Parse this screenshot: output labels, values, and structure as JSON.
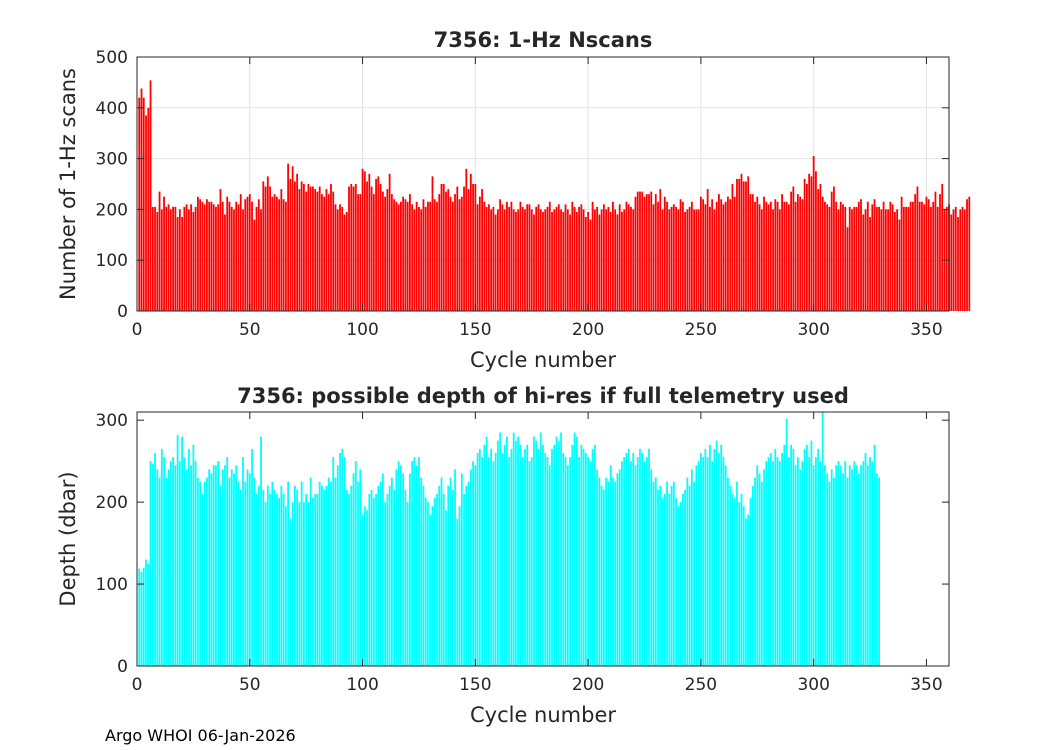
{
  "footer": "Argo WHOI 06-Jan-2026",
  "chart_data": [
    {
      "type": "bar",
      "title": "7356: 1-Hz Nscans",
      "xlabel": "Cycle number",
      "ylabel": "Number of 1-Hz scans",
      "xlim": [
        0,
        360
      ],
      "ylim": [
        0,
        500
      ],
      "xticks": [
        0,
        50,
        100,
        150,
        200,
        250,
        300,
        350
      ],
      "yticks": [
        0,
        100,
        200,
        300,
        400,
        500
      ],
      "grid": true,
      "bar_color": "#ff0000",
      "x_start": 1,
      "values": [
        420,
        438,
        420,
        385,
        400,
        454,
        205,
        205,
        195,
        235,
        200,
        225,
        205,
        210,
        200,
        205,
        205,
        185,
        200,
        185,
        205,
        210,
        200,
        210,
        195,
        205,
        225,
        220,
        215,
        210,
        220,
        215,
        215,
        210,
        205,
        210,
        240,
        215,
        190,
        225,
        215,
        205,
        200,
        215,
        210,
        230,
        200,
        220,
        225,
        230,
        215,
        180,
        205,
        220,
        200,
        255,
        245,
        265,
        245,
        225,
        230,
        225,
        220,
        240,
        220,
        215,
        290,
        260,
        285,
        255,
        270,
        240,
        255,
        250,
        235,
        250,
        245,
        245,
        240,
        235,
        245,
        230,
        225,
        240,
        230,
        250,
        235,
        210,
        200,
        210,
        205,
        190,
        195,
        245,
        250,
        245,
        250,
        230,
        230,
        280,
        275,
        255,
        270,
        245,
        230,
        260,
        265,
        250,
        235,
        225,
        240,
        270,
        230,
        220,
        215,
        210,
        215,
        225,
        220,
        215,
        230,
        210,
        200,
        215,
        205,
        200,
        220,
        205,
        215,
        215,
        265,
        220,
        215,
        230,
        250,
        250,
        235,
        240,
        225,
        215,
        230,
        245,
        220,
        225,
        245,
        280,
        240,
        270,
        250,
        250,
        210,
        225,
        240,
        215,
        205,
        210,
        200,
        205,
        190,
        200,
        220,
        210,
        200,
        215,
        205,
        215,
        200,
        195,
        200,
        215,
        205,
        200,
        210,
        210,
        200,
        190,
        205,
        210,
        200,
        195,
        200,
        205,
        215,
        195,
        200,
        205,
        210,
        200,
        195,
        210,
        200,
        190,
        215,
        205,
        195,
        205,
        210,
        200,
        185,
        195,
        180,
        215,
        200,
        205,
        190,
        200,
        210,
        200,
        205,
        195,
        215,
        200,
        190,
        210,
        195,
        200,
        215,
        210,
        205,
        200,
        225,
        235,
        235,
        235,
        225,
        230,
        230,
        235,
        210,
        230,
        215,
        240,
        200,
        225,
        215,
        200,
        205,
        210,
        205,
        200,
        220,
        215,
        195,
        200,
        205,
        215,
        200,
        200,
        200,
        225,
        220,
        210,
        240,
        205,
        220,
        200,
        215,
        230,
        220,
        210,
        215,
        225,
        220,
        250,
        225,
        260,
        260,
        270,
        255,
        255,
        265,
        230,
        230,
        215,
        225,
        210,
        200,
        225,
        215,
        210,
        215,
        200,
        220,
        215,
        200,
        230,
        215,
        215,
        210,
        235,
        245,
        215,
        230,
        225,
        220,
        260,
        250,
        270,
        265,
        305,
        275,
        240,
        250,
        225,
        215,
        210,
        205,
        235,
        245,
        215,
        200,
        215,
        210,
        205,
        165,
        205,
        200,
        205,
        205,
        215,
        220,
        190,
        200,
        215,
        185,
        210,
        220,
        205,
        205,
        200,
        215,
        200,
        200,
        215,
        210,
        195,
        200,
        180,
        225,
        205,
        205,
        205,
        215,
        215,
        230,
        245,
        215,
        215,
        210,
        225,
        220,
        205,
        215,
        235,
        205,
        230,
        250,
        200,
        205,
        210,
        190,
        200,
        205,
        185,
        200,
        205,
        200,
        220,
        225
      ]
    },
    {
      "type": "bar",
      "title": "7356: possible depth of hi-res if full telemetry used",
      "xlabel": "Cycle number",
      "ylabel": "Depth (dbar)",
      "xlim": [
        0,
        360
      ],
      "ylim": [
        0,
        310
      ],
      "xticks": [
        0,
        50,
        100,
        150,
        200,
        250,
        300,
        350
      ],
      "yticks": [
        0,
        100,
        200,
        300
      ],
      "grid": false,
      "bar_color": "#00ffff",
      "x_start": 1,
      "values": [
        119,
        115,
        120,
        130,
        125,
        250,
        247,
        260,
        240,
        230,
        265,
        255,
        230,
        240,
        250,
        255,
        245,
        282,
        250,
        280,
        255,
        240,
        265,
        245,
        270,
        250,
        230,
        225,
        210,
        225,
        230,
        240,
        235,
        245,
        245,
        250,
        220,
        240,
        245,
        255,
        230,
        240,
        235,
        245,
        225,
        215,
        255,
        225,
        240,
        235,
        265,
        230,
        210,
        220,
        280,
        215,
        200,
        220,
        210,
        225,
        215,
        210,
        205,
        220,
        210,
        195,
        225,
        180,
        200,
        220,
        215,
        200,
        225,
        200,
        210,
        200,
        230,
        205,
        210,
        210,
        225,
        220,
        215,
        220,
        230,
        225,
        255,
        230,
        245,
        260,
        265,
        255,
        215,
        210,
        220,
        235,
        250,
        225,
        240,
        185,
        195,
        190,
        210,
        215,
        205,
        210,
        220,
        225,
        235,
        200,
        210,
        220,
        230,
        215,
        240,
        250,
        245,
        235,
        215,
        200,
        235,
        250,
        255,
        245,
        255,
        230,
        220,
        205,
        200,
        185,
        195,
        205,
        210,
        220,
        230,
        210,
        190,
        220,
        230,
        215,
        240,
        180,
        195,
        235,
        210,
        220,
        225,
        240,
        250,
        245,
        260,
        265,
        255,
        270,
        280,
        255,
        265,
        250,
        260,
        275,
        285,
        260,
        270,
        280,
        255,
        265,
        285,
        275,
        280,
        270,
        255,
        265,
        270,
        250,
        255,
        280,
        275,
        265,
        285,
        270,
        260,
        255,
        245,
        265,
        270,
        280,
        275,
        285,
        260,
        255,
        245,
        255,
        270,
        285,
        280,
        255,
        270,
        265,
        260,
        255,
        250,
        265,
        270,
        240,
        230,
        220,
        215,
        230,
        225,
        245,
        230,
        225,
        235,
        240,
        250,
        255,
        260,
        265,
        250,
        260,
        245,
        255,
        265,
        260,
        250,
        255,
        265,
        240,
        225,
        230,
        215,
        220,
        205,
        210,
        225,
        210,
        220,
        225,
        205,
        195,
        200,
        210,
        215,
        230,
        220,
        240,
        225,
        245,
        250,
        260,
        255,
        265,
        255,
        270,
        250,
        265,
        275,
        260,
        270,
        255,
        245,
        230,
        220,
        210,
        205,
        225,
        200,
        210,
        195,
        180,
        185,
        205,
        220,
        230,
        245,
        235,
        225,
        240,
        250,
        255,
        260,
        250,
        265,
        255,
        250,
        260,
        270,
        302,
        255,
        270,
        265,
        245,
        255,
        240,
        250,
        265,
        270,
        255,
        275,
        245,
        255,
        265,
        250,
        310,
        245,
        235,
        225,
        240,
        230,
        245,
        250,
        245,
        235,
        250,
        230,
        245,
        240,
        250,
        245,
        235,
        245,
        250,
        260,
        245,
        255,
        250,
        270,
        235,
        230
      ]
    }
  ]
}
